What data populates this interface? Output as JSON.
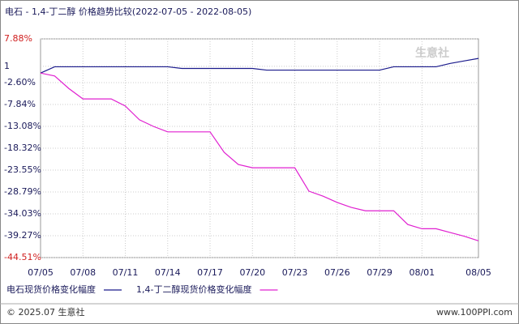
{
  "chart_data": {
    "type": "line",
    "title": "电石 - 1,4-丁二醇 价格趋势比较(2022-07-05 - 2022-08-05)",
    "categories": [
      "07/05",
      null,
      null,
      "07/08",
      null,
      null,
      "07/11",
      null,
      null,
      "07/14",
      null,
      null,
      "07/17",
      null,
      null,
      "07/20",
      null,
      null,
      "07/23",
      null,
      null,
      "07/26",
      null,
      null,
      "07/29",
      null,
      null,
      "08/01",
      null,
      null,
      null,
      "08/05"
    ],
    "series": [
      {
        "name": "电石现货价格变化幅度",
        "color": "#1a1a8c",
        "values": [
          -0.3,
          1.2,
          1.2,
          1.2,
          1.2,
          1.2,
          1.2,
          1.2,
          1.2,
          1.2,
          0.8,
          0.8,
          0.8,
          0.8,
          0.8,
          0.8,
          0.4,
          0.4,
          0.4,
          0.4,
          0.4,
          0.4,
          0.4,
          0.4,
          0.4,
          1.2,
          1.2,
          1.2,
          1.2,
          2.0,
          2.6,
          3.2
        ]
      },
      {
        "name": "1,4-丁二醇现货价格变化幅度",
        "color": "#e020d0",
        "values": [
          -0.3,
          -1.0,
          -4.0,
          -6.5,
          -6.5,
          -6.5,
          -8.2,
          -11.5,
          -13.1,
          -14.4,
          -14.4,
          -14.4,
          -14.4,
          -19.3,
          -22.2,
          -23.0,
          -23.0,
          -23.0,
          -23.0,
          -28.6,
          -29.8,
          -31.3,
          -32.5,
          -33.3,
          -33.3,
          -33.3,
          -36.6,
          -37.6,
          -37.6,
          -38.5,
          -39.4,
          -40.5
        ]
      }
    ],
    "ylim": [
      -44.51,
      7.88
    ],
    "yticks": [
      {
        "value": 7.88,
        "label": "7.88%"
      },
      {
        "value": 1.3,
        "label": "1"
      },
      {
        "value": -2.6,
        "label": "-2.60%"
      },
      {
        "value": -7.84,
        "label": "-7.84%"
      },
      {
        "value": -13.08,
        "label": "-13.08%"
      },
      {
        "value": -18.32,
        "label": "-18.32%"
      },
      {
        "value": -23.55,
        "label": "-23.55%"
      },
      {
        "value": -28.79,
        "label": "-28.79%"
      },
      {
        "value": -34.03,
        "label": "-34.03%"
      },
      {
        "value": -39.27,
        "label": "-39.27%"
      },
      {
        "value": -44.51,
        "label": "-44.51%"
      }
    ],
    "grid": true,
    "watermark": "生意社",
    "footer_left": "© 2025.07 生意社",
    "footer_right": "www.100PPI.com"
  }
}
